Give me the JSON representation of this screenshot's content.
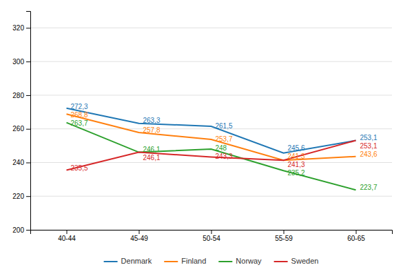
{
  "chart_data": {
    "type": "line",
    "categories": [
      "40-44",
      "45-49",
      "50-54",
      "55-59",
      "60-65"
    ],
    "series": [
      {
        "name": "Denmark",
        "values": [
          272.3,
          263.3,
          261.5,
          245.6,
          253.1
        ],
        "value_labels": [
          "272,3",
          "263,3",
          "261,5",
          "245,6",
          "253,1"
        ]
      },
      {
        "name": "Finland",
        "values": [
          268.8,
          257.8,
          253.7,
          241.3,
          243.6
        ],
        "value_labels": [
          "268,8",
          "257,8",
          "253,7",
          "241,3",
          "243,6"
        ]
      },
      {
        "name": "Norway",
        "values": [
          263.7,
          246.1,
          248.0,
          235.2,
          223.7
        ],
        "value_labels": [
          "263,7",
          "246,1",
          "248",
          "235,2",
          "223,7"
        ]
      },
      {
        "name": "Sweden",
        "values": [
          235.5,
          246.1,
          243.3,
          241.3,
          253.1
        ],
        "value_labels": [
          "235,5",
          "246,1",
          "243,3",
          "241,3",
          "253,1"
        ]
      }
    ],
    "ylim": [
      200,
      330
    ],
    "yticks": [
      200,
      220,
      240,
      260,
      280,
      300,
      320
    ],
    "grid": true,
    "data_labels": true,
    "legend": "bottom"
  }
}
